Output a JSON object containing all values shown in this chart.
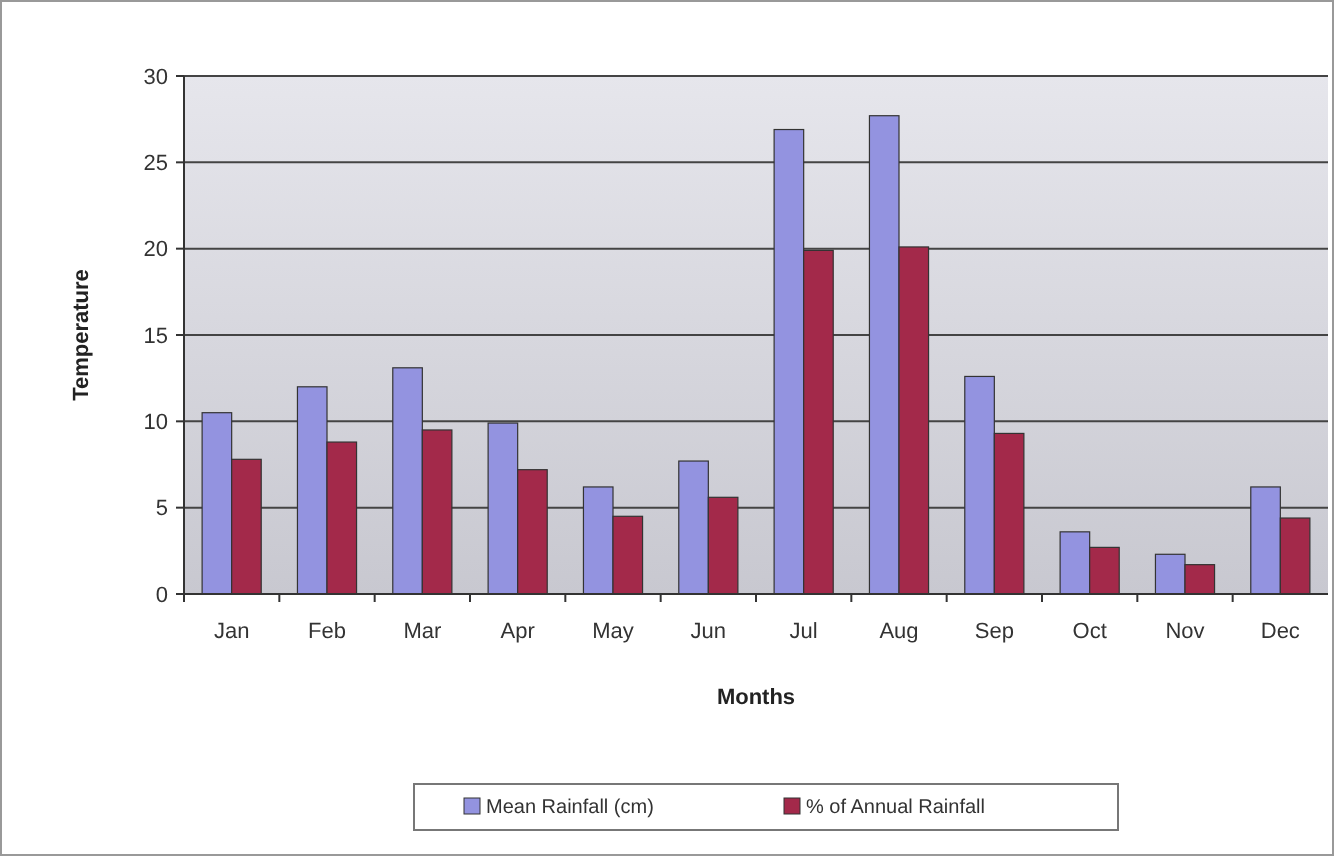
{
  "chart_data": {
    "type": "bar",
    "xlabel": "Months",
    "ylabel": "Temperature",
    "categories": [
      "Jan",
      "Feb",
      "Mar",
      "Apr",
      "May",
      "Jun",
      "Jul",
      "Aug",
      "Sep",
      "Oct",
      "Nov",
      "Dec"
    ],
    "series": [
      {
        "name": "Mean Rainfall (cm)",
        "color": "#9393e0",
        "values": [
          10.5,
          12.0,
          13.1,
          9.9,
          6.2,
          7.7,
          26.9,
          27.7,
          12.6,
          3.6,
          2.3,
          6.2
        ]
      },
      {
        "name": "% of Annual Rainfall",
        "color": "#a3294a",
        "values": [
          7.8,
          8.8,
          9.5,
          7.2,
          4.5,
          5.6,
          19.9,
          20.1,
          9.3,
          2.7,
          1.7,
          4.4
        ]
      }
    ],
    "ylim": [
      0,
      30
    ],
    "yticks": [
      0,
      5,
      10,
      15,
      20,
      25,
      30
    ],
    "grid": "y",
    "legend": "bottom"
  }
}
